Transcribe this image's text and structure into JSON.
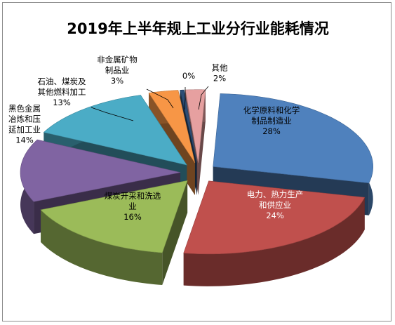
{
  "chart_data": {
    "type": "pie",
    "title": "2019年上半年规上工业分行业能耗情况",
    "exploded": true,
    "three_d": true,
    "slices": [
      {
        "name": "化学原料和化学制品制造业",
        "label_lines": [
          "化学原料和化学",
          "制品制造业"
        ],
        "value": 28,
        "value_label": "28%",
        "color": "#4f81bd",
        "label_color": "#000000"
      },
      {
        "name": "电力、热力生产和供应业",
        "label_lines": [
          "电力、热力生产",
          "和供应业"
        ],
        "value": 24,
        "value_label": "24%",
        "color": "#c0504d",
        "label_color": "#ffffff"
      },
      {
        "name": "煤炭开采和洗选业",
        "label_lines": [
          "煤炭开采和洗选",
          "业"
        ],
        "value": 16,
        "value_label": "16%",
        "color": "#9bbb59",
        "label_color": "#000000"
      },
      {
        "name": "黑色金属冶炼和压延加工业",
        "label_lines": [
          "黑色金属",
          "冶炼和压",
          "延加工业"
        ],
        "value": 14,
        "value_label": "14%",
        "color": "#8064a2",
        "label_color": "#000000"
      },
      {
        "name": "石油、煤炭及其他燃料加工",
        "label_lines": [
          "石油、煤炭及",
          "其他燃料加工"
        ],
        "value": 13,
        "value_label": "13%",
        "color": "#4bacc6",
        "label_color": "#000000"
      },
      {
        "name": "非金属矿物制品业",
        "label_lines": [
          "非金属矿物",
          "制品业"
        ],
        "value": 3,
        "value_label": "3%",
        "color": "#f79646",
        "label_color": "#000000"
      },
      {
        "name": "",
        "label_lines": [],
        "value": 0.4,
        "value_label": "0%",
        "color": "#2c4d75",
        "label_color": "#000000"
      },
      {
        "name": "其他",
        "label_lines": [
          "其他"
        ],
        "value": 2,
        "value_label": "2%",
        "color": "#e6a0a0",
        "label_color": "#000000"
      }
    ]
  }
}
